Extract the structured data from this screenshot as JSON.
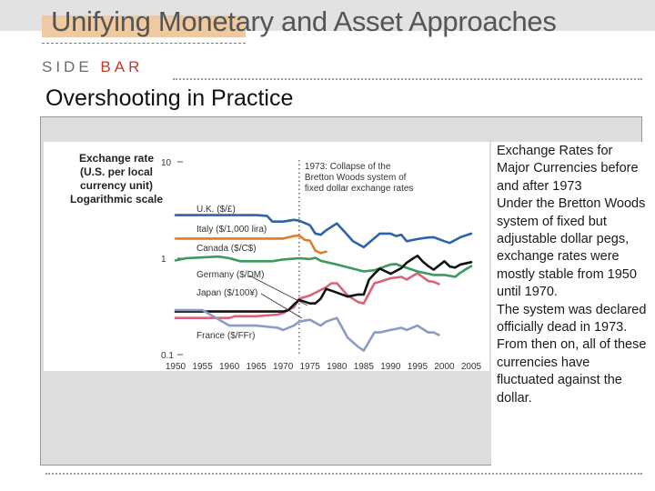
{
  "slide": {
    "title": "Unifying Monetary and Asset Approaches",
    "sidebar_label": "SIDE",
    "sidebar_label_accent": "BAR",
    "subtitle": "Overshooting in Practice",
    "caption_heading": "Exchange Rates for Major Currencies before and after 1973",
    "caption_body_1": "Under the Bretton Woods system of fixed but adjustable dollar pegs, exchange rates were mostly stable from 1950 until 1970.",
    "caption_body_2": "The system was declared officially dead in 1973. From then on, all of these currencies have fluctuated against the dollar."
  },
  "chart_data": {
    "type": "line",
    "ylabel_lines": [
      "Exchange rate",
      "(U.S. per local",
      "currency unit)",
      "Logarithmic scale"
    ],
    "y_scale": "log",
    "ylim": [
      0.1,
      10
    ],
    "y_ticks": [
      {
        "value": 10,
        "label": "10"
      },
      {
        "value": 1,
        "label": "1"
      },
      {
        "value": 0.1,
        "label": "0.1"
      }
    ],
    "xlim": [
      1950,
      2005
    ],
    "x_ticks": [
      "1950",
      "1955",
      "1960",
      "1965",
      "1970",
      "1975",
      "1980",
      "1985",
      "1990",
      "1995",
      "2000",
      "2005"
    ],
    "annotation": {
      "year": 1973,
      "lines": [
        "1973: Collapse of the",
        "Bretton Woods system of",
        "fixed dollar exchange rates"
      ]
    },
    "series": [
      {
        "name": "U.K. ($/£)",
        "color": "#2e63a8",
        "x": [
          1950,
          1955,
          1960,
          1965,
          1967,
          1968,
          1970,
          1972,
          1973,
          1975,
          1976,
          1977,
          1978,
          1980,
          1981,
          1983,
          1985,
          1986,
          1988,
          1990,
          1991,
          1992,
          1993,
          1995,
          1997,
          1998,
          2000,
          2001,
          2003,
          2005
        ],
        "y": [
          2.8,
          2.8,
          2.8,
          2.8,
          2.75,
          2.4,
          2.4,
          2.5,
          2.45,
          2.2,
          1.8,
          1.75,
          1.95,
          2.3,
          2.0,
          1.5,
          1.3,
          1.45,
          1.8,
          1.8,
          1.7,
          1.75,
          1.5,
          1.58,
          1.64,
          1.65,
          1.5,
          1.44,
          1.65,
          1.8
        ]
      },
      {
        "name": "Italy ($/1,000 lira)",
        "color": "#e07b2a",
        "x": [
          1950,
          1955,
          1960,
          1965,
          1970,
          1972,
          1973,
          1974,
          1975,
          1976,
          1977,
          1978
        ],
        "y": [
          1.6,
          1.6,
          1.6,
          1.6,
          1.6,
          1.7,
          1.72,
          1.55,
          1.52,
          1.2,
          1.13,
          1.17
        ]
      },
      {
        "name": "Canada ($/C$)",
        "color": "#3a9a5b",
        "x": [
          1950,
          1952,
          1955,
          1958,
          1960,
          1962,
          1965,
          1968,
          1970,
          1973,
          1975,
          1976,
          1977,
          1980,
          1985,
          1987,
          1990,
          1991,
          1992,
          1995,
          1998,
          2000,
          2002,
          2003,
          2005
        ],
        "y": [
          0.95,
          1.0,
          1.02,
          1.04,
          1.0,
          0.93,
          0.93,
          0.93,
          0.97,
          1.0,
          0.98,
          1.01,
          0.94,
          0.86,
          0.73,
          0.75,
          0.86,
          0.87,
          0.83,
          0.73,
          0.67,
          0.67,
          0.64,
          0.71,
          0.83
        ]
      },
      {
        "name": "Germany ($/DM)",
        "color": "#d9637a",
        "x": [
          1950,
          1955,
          1960,
          1961,
          1965,
          1969,
          1970,
          1972,
          1973,
          1975,
          1978,
          1979,
          1980,
          1982,
          1984,
          1985,
          1987,
          1988,
          1990,
          1992,
          1993,
          1995,
          1997,
          1998,
          1999
        ],
        "y": [
          0.24,
          0.24,
          0.24,
          0.25,
          0.25,
          0.26,
          0.27,
          0.31,
          0.38,
          0.41,
          0.5,
          0.55,
          0.55,
          0.41,
          0.35,
          0.34,
          0.55,
          0.57,
          0.62,
          0.64,
          0.6,
          0.7,
          0.58,
          0.57,
          0.54
        ]
      },
      {
        "name": "Japan ($/100¥)",
        "color": "#111111",
        "x": [
          1950,
          1955,
          1960,
          1965,
          1970,
          1971,
          1972,
          1973,
          1975,
          1976,
          1977,
          1978,
          1979,
          1980,
          1982,
          1984,
          1985,
          1986,
          1987,
          1988,
          1990,
          1992,
          1993,
          1994,
          1995,
          1996,
          1997,
          1998,
          2000,
          2001,
          2002,
          2003,
          2005
        ],
        "y": [
          0.28,
          0.28,
          0.28,
          0.28,
          0.28,
          0.29,
          0.33,
          0.37,
          0.34,
          0.34,
          0.38,
          0.48,
          0.46,
          0.44,
          0.4,
          0.42,
          0.42,
          0.6,
          0.69,
          0.78,
          0.69,
          0.79,
          0.9,
          0.98,
          1.06,
          0.92,
          0.83,
          0.76,
          0.93,
          0.82,
          0.8,
          0.86,
          0.91
        ]
      },
      {
        "name": "France ($/FFr)",
        "color": "#8a9cc4",
        "x": [
          1950,
          1955,
          1960,
          1965,
          1969,
          1970,
          1972,
          1973,
          1975,
          1977,
          1978,
          1980,
          1982,
          1984,
          1985,
          1987,
          1988,
          1990,
          1992,
          1993,
          1995,
          1997,
          1998,
          1999
        ],
        "y": [
          0.29,
          0.29,
          0.2,
          0.2,
          0.19,
          0.18,
          0.2,
          0.22,
          0.23,
          0.2,
          0.22,
          0.24,
          0.15,
          0.12,
          0.11,
          0.17,
          0.17,
          0.18,
          0.19,
          0.18,
          0.2,
          0.17,
          0.17,
          0.16
        ]
      }
    ]
  }
}
